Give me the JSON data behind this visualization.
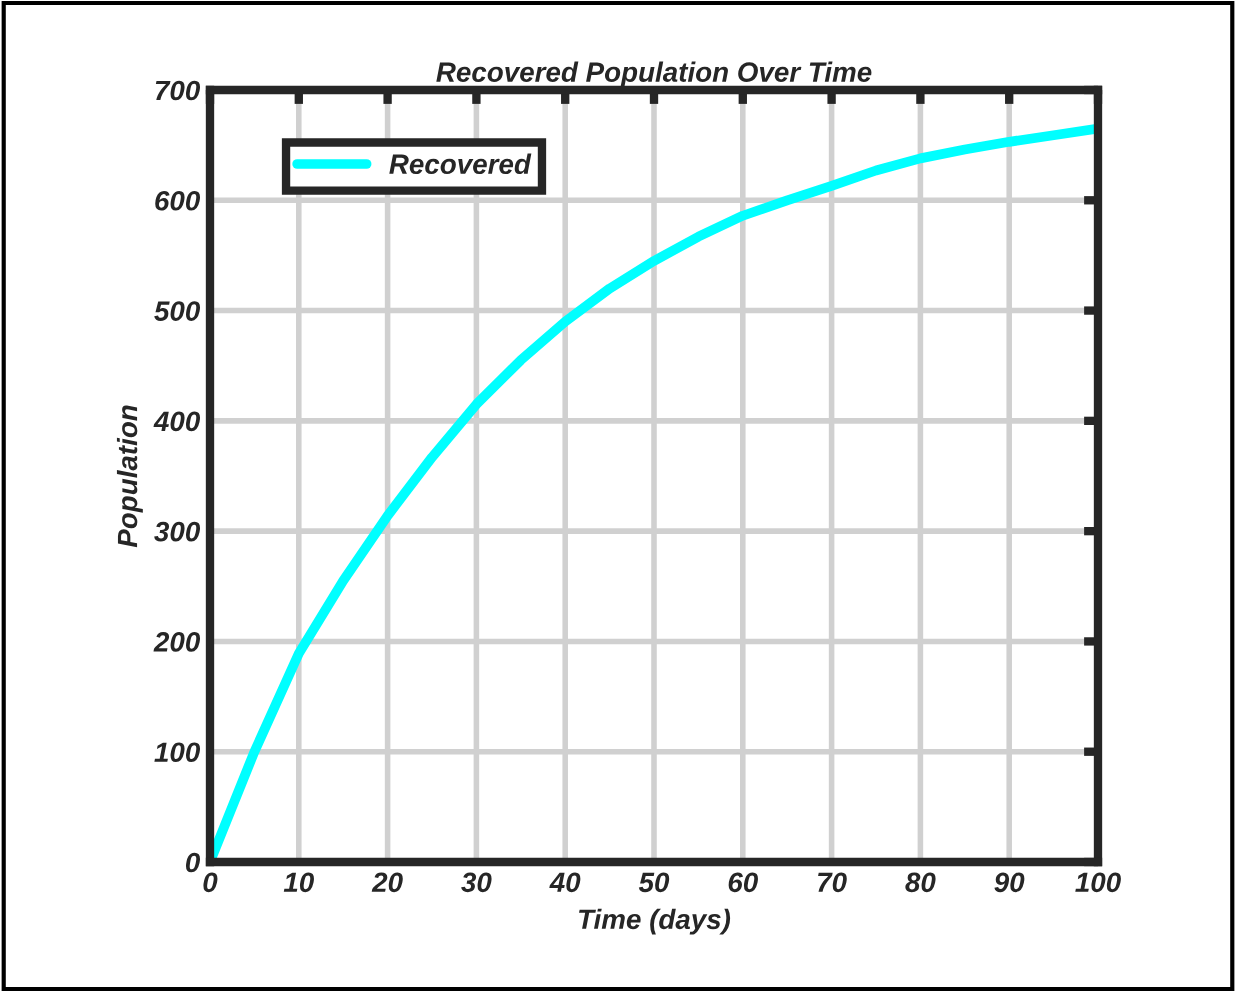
{
  "chart_data": {
    "type": "line",
    "title": "Recovered Population Over Time",
    "xlabel": "Time (days)",
    "ylabel": "Population",
    "x": [
      0,
      5,
      10,
      15,
      20,
      25,
      30,
      35,
      40,
      45,
      50,
      55,
      60,
      65,
      70,
      75,
      80,
      85,
      90,
      95,
      100
    ],
    "series": [
      {
        "name": "Recovered",
        "color": "#00ffff",
        "values": [
          0,
          100,
          189,
          255,
          314,
          367,
          415,
          455,
          490,
          520,
          545,
          567,
          586,
          600,
          613,
          627,
          638,
          646,
          653,
          659,
          665
        ]
      }
    ],
    "xlim": [
      0,
      100
    ],
    "ylim": [
      0,
      700
    ],
    "xticks": [
      0,
      10,
      20,
      30,
      40,
      50,
      60,
      70,
      80,
      90,
      100
    ],
    "yticks": [
      0,
      100,
      200,
      300,
      400,
      500,
      600,
      700
    ],
    "grid": true,
    "legend": "top left",
    "marker": "none",
    "line_style": "solid"
  }
}
